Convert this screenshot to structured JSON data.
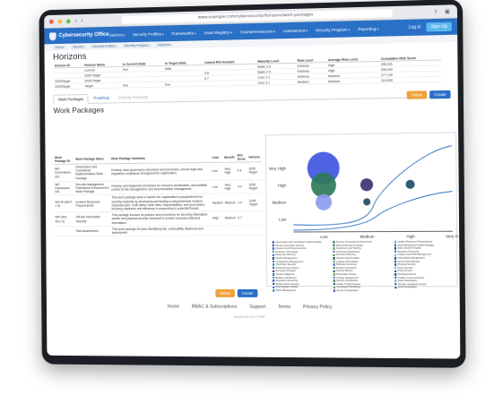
{
  "browser": {
    "url": "www.example.com/cybersecurity/horizons/work-packages"
  },
  "app": {
    "brand": "Cybersecurity Office",
    "menu": [
      "Sectors",
      "Security Profiles",
      "Frameworks",
      "Asset Registry",
      "Countermeasures",
      "Assessment",
      "Security Program",
      "Reporting"
    ],
    "login": "Log in",
    "signup": "Sign Up"
  },
  "crumbs": [
    "Home",
    "Sectors",
    "Security Profiles",
    "Security Program",
    "Horizons"
  ],
  "horizons": {
    "title": "Horizons",
    "columns": [
      "Horizon ID",
      "Horizon Name",
      "Is Current State",
      "Is Target State",
      "Lowest ROI Amount",
      "Maturity Level",
      "Risk Level",
      "Average Risk Level",
      "Cumulative Risk Score"
    ],
    "rows": [
      [
        "",
        "Current",
        "true",
        "false",
        "",
        "Basic 2.0",
        "Extreme",
        "High",
        "206,321"
      ],
      [
        "",
        "2025 Target",
        "",
        "",
        "0.8",
        "Basic 2.5",
        "Extreme",
        "High",
        "206,340"
      ],
      [
        "2025Target",
        "2028 Target",
        "",
        "",
        "0.7",
        "Core 2.1",
        "Extreme",
        "Medium",
        "177,140"
      ],
      [
        "2028Target",
        "Target",
        "true",
        "true",
        "",
        "Core 3.1",
        "Medium",
        "Medium",
        "110,005"
      ]
    ],
    "delete_label": "Delete",
    "create_label": "Create"
  },
  "tabs": [
    "Work Packages",
    "Roadmap",
    "Maturity Roadmap"
  ],
  "work_packages": {
    "title": "Work Packages",
    "columns": [
      "Work Package ID",
      "Work Package Name",
      "Work Package Summary",
      "Cost",
      "Benefit",
      "ROI Score",
      "Horizon"
    ],
    "rows": [
      [
        "WP-Governance-001",
        "Governance and Compliance Implementation Work Package",
        "Develop clear governance structures and processes, ensure legal and regulatory compliance throughout the organization.",
        "Low",
        "Very High",
        "4.4",
        "2025 Target"
      ],
      [
        "WP-Framework-001",
        "Security Management Framework Enhancement Work Package",
        "Develop and implement processes for resource prioritization, accountable control of risk management, and documentation management.",
        "Low",
        "Very High",
        "4.0",
        "2025 Target"
      ],
      [
        "WP-IR-(NIST-1-3)",
        "Incident Response Preparedness",
        "This work package aims to bolster the organization's preparedness for security incidents by developing and testing a comprehensive incident response plan. It will define clear roles, responsibilities, and procedures, ensuring readiness and efficiency in responding to potential threats.",
        "Medium",
        "Medium",
        "1.0",
        "2028 Target"
      ],
      [
        "WP-(ISO-A5.1.3)",
        "Off-site Information Security",
        "This package focuses on policies and procedures for securing information assets and physical security measures to protect company data and information.",
        "High",
        "Medium",
        "0.7",
        ""
      ],
      [
        "",
        "Risk Assessment",
        "This work package focuses identifying risk, vulnerability, likelihood and assessment",
        "",
        "",
        "",
        ""
      ]
    ],
    "delete_label": "Delete",
    "create_label": "Create"
  },
  "chart_data": {
    "type": "scatter",
    "title": "",
    "xlabel": "",
    "ylabel": "",
    "x_categories": [
      "Low",
      "Medium",
      "High",
      "Very High"
    ],
    "y_categories": [
      "Low",
      "Medium",
      "High",
      "Very High"
    ],
    "points": [
      {
        "x": "Low",
        "y": "Very High",
        "size": 18,
        "color": "#3f56e0"
      },
      {
        "x": "Low",
        "y": "High",
        "size": 14,
        "color": "#2e7a5a"
      },
      {
        "x": "Low",
        "y": "Medium",
        "size": 9,
        "color": "#8d9bee"
      },
      {
        "x": "Medium",
        "y": "High",
        "size": 7,
        "color": "#3a3470"
      },
      {
        "x": "Medium",
        "y": "Medium",
        "size": 4,
        "color": "#204c66"
      },
      {
        "x": "High",
        "y": "High",
        "size": 5,
        "color": "#1b4f66"
      }
    ],
    "curves": true,
    "grid": false,
    "legend": "bottom",
    "legend_entries": [
      "Governance and Compliance Implementation",
      "Security Framework Enhancement",
      "Incident Response Preparedness",
      "Off-site Information Security",
      "Risk Assessment Program",
      "Asset Management Work Package",
      "Access Control Improvements",
      "Awareness and Training",
      "Data Security Program",
      "Protective Technology",
      "Continuous Monitoring",
      "Detection Processes",
      "Response Planning",
      "Recovery Planning",
      "Supply Chain Risk Management",
      "Identity Management",
      "Network Segmentation",
      "Vulnerability Management",
      "Configuration Management",
      "Logging and Auditing",
      "Secure Development",
      "Third-Party Security",
      "Business Continuity",
      "Physical Security",
      "Cloud Security Posture",
      "Endpoint Protection",
      "Email Security",
      "Encryption Program",
      "Security Metrics",
      "Policy Review",
      "Threat Intelligence",
      "Penetration Testing",
      "Privileged Access",
      "Backup and Restore",
      "Change Management",
      "Incident Communications",
      "Regulatory Reporting",
      "Security Architecture",
      "Data Classification",
      "Mobile Device Security",
      "Insider Threat Program",
      "Security Operations Center",
      "Risk Register Update",
      "Compliance Monitoring",
      "Audit Remediation",
      "Patch Management",
      "Secure Configuration"
    ],
    "legend_colors": [
      "#3f56e0",
      "#2e7a5a",
      "#8d9bee",
      "#3a3470",
      "#204c66",
      "#1b4f66",
      "#2a70c6",
      "#5a9e3a",
      "#1f4a8a",
      "#3b8fb0",
      "#6a55c2",
      "#2e6e6e"
    ]
  },
  "footer": {
    "links": [
      "Home",
      "RBAC & Subscriptions",
      "Support",
      "Terms",
      "Privacy Policy"
    ],
    "powered": "Secured by Uro © 2024"
  }
}
